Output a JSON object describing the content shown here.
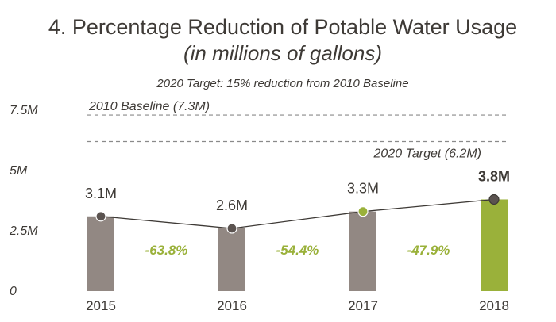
{
  "chart_data": {
    "type": "bar",
    "title": "4. Percentage Reduction of Potable Water Usage",
    "subtitle": "(in millions of gallons)",
    "note": "2020 Target: 15% reduction from 2010 Baseline",
    "categories": [
      "2015",
      "2016",
      "2017",
      "2018"
    ],
    "values": [
      3.1,
      2.6,
      3.3,
      3.8
    ],
    "value_labels": [
      "3.1M",
      "2.6M",
      "3.3M",
      "3.8M"
    ],
    "yticks": [
      {
        "value": 0,
        "label": "0"
      },
      {
        "value": 2.5,
        "label": "2.5M"
      },
      {
        "value": 5,
        "label": "5M"
      },
      {
        "value": 7.5,
        "label": "7.5M"
      }
    ],
    "ylim": [
      0,
      7.5
    ],
    "reference_lines": [
      {
        "label": "2010 Baseline (7.3M)",
        "value": 7.3,
        "label_position": "above-left"
      },
      {
        "label": "2020 Target (6.2M)",
        "value": 6.2,
        "label_position": "below-right"
      }
    ],
    "reductions": [
      "-63.8%",
      "-54.4%",
      "-47.9%"
    ],
    "highlight_index": 3,
    "colors": {
      "bar": "#928883",
      "bar_highlight": "#9ab13a",
      "marker": "#5b5350",
      "marker_highlight": "#9ab13a",
      "line": "#3e3a36",
      "reduction_text": "#9ab13a",
      "reference_line": "#8a8a8a"
    }
  }
}
